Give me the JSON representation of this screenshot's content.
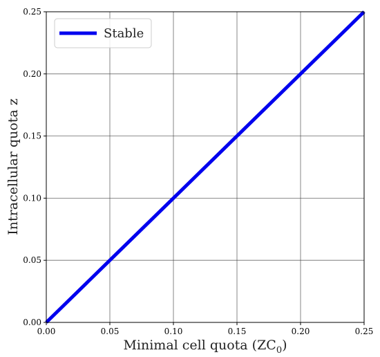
{
  "chart_data": {
    "type": "line",
    "xlabel_main": "Minimal cell quota (ZC",
    "xlabel_sub": "0",
    "xlabel_close": ")",
    "ylabel": "Intracellular quota z",
    "xlim": [
      0,
      0.25
    ],
    "ylim": [
      0,
      0.25
    ],
    "x_ticks": [
      "0.00",
      "0.05",
      "0.10",
      "0.15",
      "0.20",
      "0.25"
    ],
    "y_ticks": [
      "0.00",
      "0.05",
      "0.10",
      "0.15",
      "0.20",
      "0.25"
    ],
    "x_tick_values": [
      0,
      0.05,
      0.1,
      0.15,
      0.2,
      0.25
    ],
    "y_tick_values": [
      0,
      0.05,
      0.1,
      0.15,
      0.2,
      0.25
    ],
    "grid": true,
    "legend_position": "top-left",
    "series": [
      {
        "name": "Stable",
        "color": "#0000ee",
        "x": [
          0,
          0.05,
          0.1,
          0.15,
          0.2,
          0.25
        ],
        "y": [
          0,
          0.05,
          0.1,
          0.15,
          0.2,
          0.25
        ]
      }
    ]
  }
}
